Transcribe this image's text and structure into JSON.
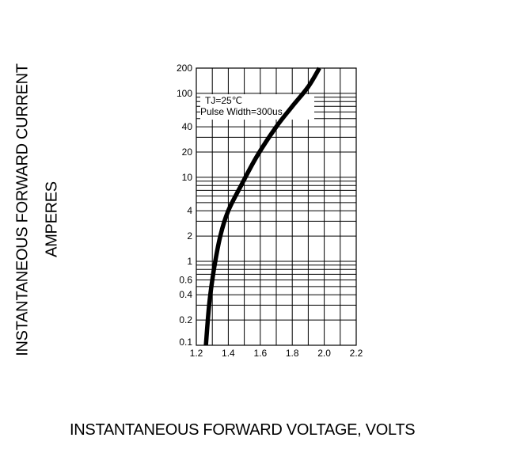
{
  "chart_data": {
    "type": "line",
    "title": "",
    "ylabel_line1": "INSTANTANEOUS FORWARD CURRENT",
    "ylabel_line2": "AMPERES",
    "xlabel": "INSTANTANEOUS FORWARD VOLTAGE,  VOLTS",
    "x_scale": "linear",
    "y_scale": "log",
    "xlim": [
      1.2,
      2.2
    ],
    "ylim": [
      0.1,
      200
    ],
    "x_ticks": [
      "1.2",
      "1.4",
      "1.6",
      "1.8",
      "2.0",
      "2.2"
    ],
    "y_ticks": [
      "0.1",
      "0.2",
      "0.4",
      "0.6",
      "1",
      "2",
      "4",
      "10",
      "20",
      "40",
      "100",
      "200"
    ],
    "annotation": {
      "line1": "TJ=25℃",
      "line2": "Pulse Width=300us"
    },
    "grid": true,
    "series": [
      {
        "color": "#000000",
        "x": [
          1.26,
          1.28,
          1.31,
          1.35,
          1.4,
          1.48,
          1.58,
          1.7,
          1.8,
          1.9,
          1.97
        ],
        "y": [
          0.1,
          0.3,
          0.8,
          2.0,
          4.0,
          8.0,
          18.0,
          40.0,
          70.0,
          120.0,
          200.0
        ]
      }
    ]
  }
}
